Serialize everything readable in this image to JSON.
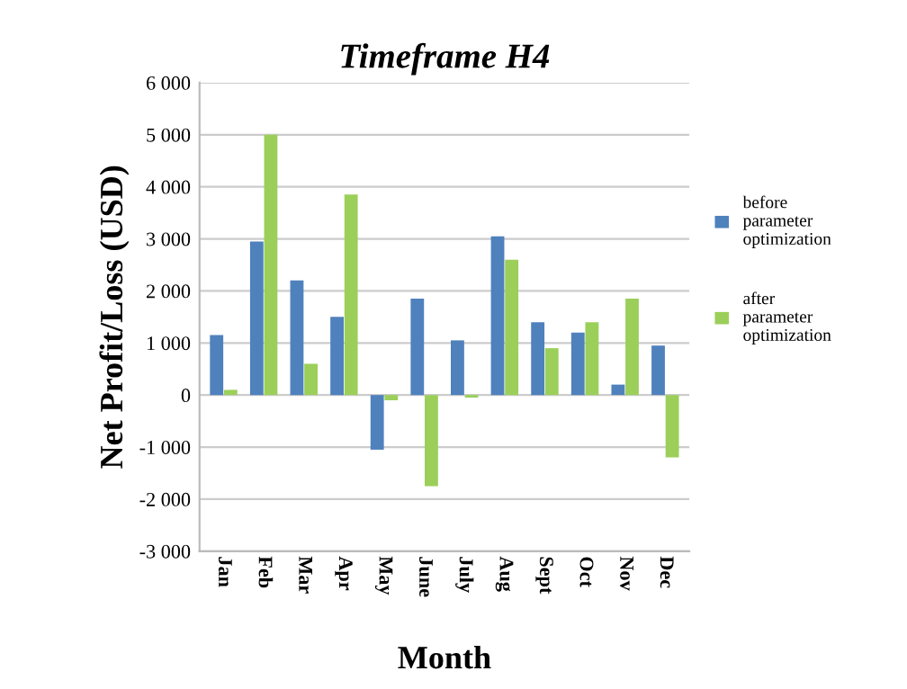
{
  "chart_data": {
    "type": "bar",
    "title": "Timeframe H4",
    "xlabel": "Month",
    "ylabel": "Net Profit/Loss (USD)",
    "categories": [
      "Jan",
      "Feb",
      "Mar",
      "Apr",
      "May",
      "June",
      "July",
      "Aug",
      "Sept",
      "Oct",
      "Nov",
      "Dec"
    ],
    "series": [
      {
        "name": "before parameter optimization",
        "color": "#4f81bd",
        "values": [
          1150,
          2950,
          2200,
          1500,
          -1050,
          1850,
          1050,
          3050,
          1400,
          1200,
          200,
          950
        ]
      },
      {
        "name": "after parameter optimization",
        "color": "#9bcf5a",
        "values": [
          100,
          5000,
          600,
          3850,
          -100,
          -1750,
          -50,
          2600,
          900,
          1400,
          1850,
          -1200
        ]
      }
    ],
    "ylim": [
      -3000,
      6000
    ],
    "yticks": [
      {
        "value": -3000,
        "label": "-3 000"
      },
      {
        "value": -2000,
        "label": "-2 000"
      },
      {
        "value": -1000,
        "label": "-1 000"
      },
      0,
      {
        "value": 1000,
        "label": "1 000"
      },
      {
        "value": 2000,
        "label": "2 000"
      },
      {
        "value": 3000,
        "label": "3 000"
      },
      {
        "value": 4000,
        "label": "4 000"
      },
      {
        "value": 5000,
        "label": "5 000"
      },
      {
        "value": 6000,
        "label": "6 000"
      }
    ],
    "grid": "y",
    "legend": "right"
  }
}
